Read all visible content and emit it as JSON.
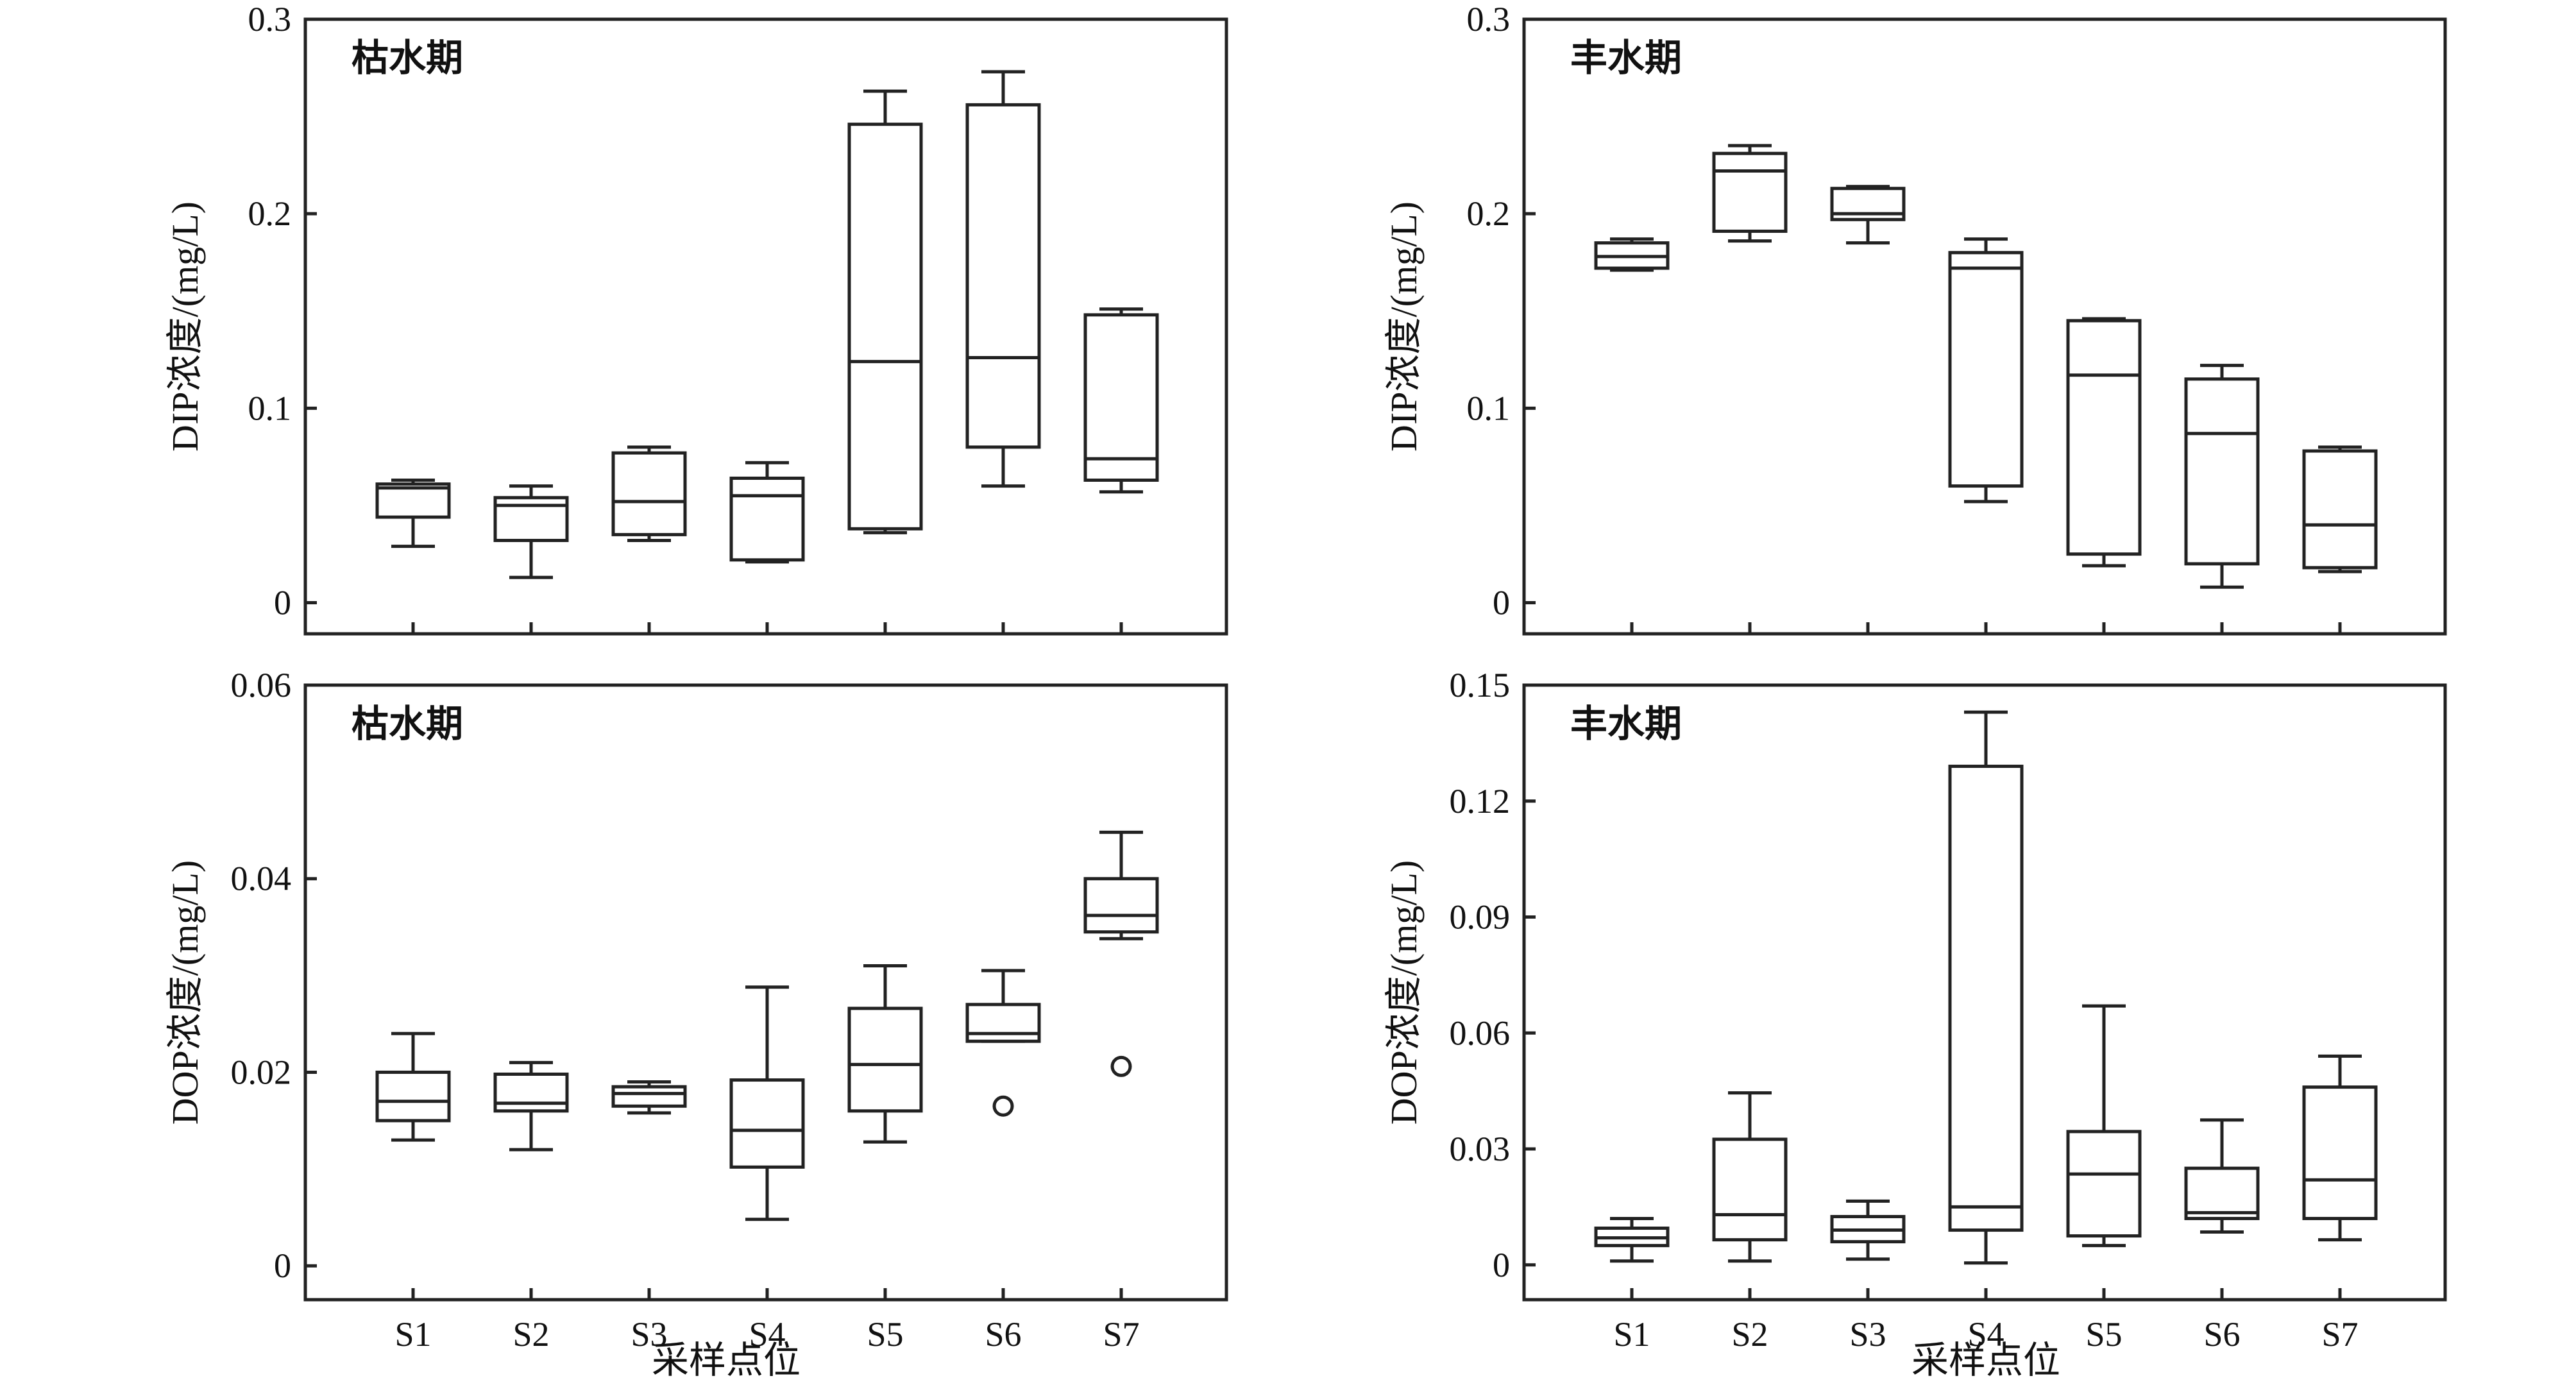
{
  "xlabel": "采样点位",
  "chart_data": [
    {
      "type": "box",
      "panel": "DIP-dry",
      "annotation": "枯水期",
      "ylabel": "DIP浓度/(mg/L)",
      "ylim": [
        -0.016,
        0.3
      ],
      "yticks": [
        0,
        0.1,
        0.2,
        0.3
      ],
      "ytick_labels": [
        "0",
        "0.1",
        "0.2",
        "0.3"
      ],
      "categories": [
        "S1",
        "S2",
        "S3",
        "S4",
        "S5",
        "S6",
        "S7"
      ],
      "boxes": [
        {
          "min": 0.029,
          "q1": 0.044,
          "median": 0.059,
          "q3": 0.061,
          "max": 0.063
        },
        {
          "min": 0.013,
          "q1": 0.032,
          "median": 0.05,
          "q3": 0.054,
          "max": 0.06
        },
        {
          "min": 0.032,
          "q1": 0.035,
          "median": 0.052,
          "q3": 0.077,
          "max": 0.08
        },
        {
          "min": 0.021,
          "q1": 0.022,
          "median": 0.055,
          "q3": 0.064,
          "max": 0.072
        },
        {
          "min": 0.036,
          "q1": 0.038,
          "median": 0.124,
          "q3": 0.246,
          "max": 0.263
        },
        {
          "min": 0.06,
          "q1": 0.08,
          "median": 0.126,
          "q3": 0.256,
          "max": 0.273
        },
        {
          "min": 0.057,
          "q1": 0.063,
          "median": 0.074,
          "q3": 0.148,
          "max": 0.151
        }
      ],
      "outliers": []
    },
    {
      "type": "box",
      "panel": "DIP-wet",
      "annotation": "丰水期",
      "ylabel": "DIP浓度/(mg/L)",
      "ylim": [
        -0.016,
        0.3
      ],
      "yticks": [
        0,
        0.1,
        0.2,
        0.3
      ],
      "ytick_labels": [
        "0",
        "0.1",
        "0.2",
        "0.3"
      ],
      "categories": [
        "S1",
        "S2",
        "S3",
        "S4",
        "S5",
        "S6",
        "S7"
      ],
      "boxes": [
        {
          "min": 0.171,
          "q1": 0.172,
          "median": 0.178,
          "q3": 0.185,
          "max": 0.187
        },
        {
          "min": 0.186,
          "q1": 0.191,
          "median": 0.222,
          "q3": 0.231,
          "max": 0.235
        },
        {
          "min": 0.185,
          "q1": 0.197,
          "median": 0.2,
          "q3": 0.213,
          "max": 0.214
        },
        {
          "min": 0.052,
          "q1": 0.06,
          "median": 0.172,
          "q3": 0.18,
          "max": 0.187
        },
        {
          "min": 0.019,
          "q1": 0.025,
          "median": 0.117,
          "q3": 0.145,
          "max": 0.146
        },
        {
          "min": 0.008,
          "q1": 0.02,
          "median": 0.087,
          "q3": 0.115,
          "max": 0.122
        },
        {
          "min": 0.016,
          "q1": 0.018,
          "median": 0.04,
          "q3": 0.078,
          "max": 0.08
        }
      ],
      "outliers": []
    },
    {
      "type": "box",
      "panel": "DOP-dry",
      "annotation": "枯水期",
      "ylabel": "DOP浓度/(mg/L)",
      "ylim": [
        -0.0035,
        0.06
      ],
      "yticks": [
        0,
        0.02,
        0.04,
        0.06
      ],
      "ytick_labels": [
        "0",
        "0.02",
        "0.04",
        "0.06"
      ],
      "categories": [
        "S1",
        "S2",
        "S3",
        "S4",
        "S5",
        "S6",
        "S7"
      ],
      "boxes": [
        {
          "min": 0.013,
          "q1": 0.015,
          "median": 0.017,
          "q3": 0.02,
          "max": 0.024
        },
        {
          "min": 0.012,
          "q1": 0.016,
          "median": 0.0168,
          "q3": 0.0198,
          "max": 0.021
        },
        {
          "min": 0.0158,
          "q1": 0.0165,
          "median": 0.0178,
          "q3": 0.0185,
          "max": 0.019
        },
        {
          "min": 0.0048,
          "q1": 0.0102,
          "median": 0.014,
          "q3": 0.0192,
          "max": 0.0288
        },
        {
          "min": 0.0128,
          "q1": 0.016,
          "median": 0.0208,
          "q3": 0.0266,
          "max": 0.031
        },
        {
          "min": 0.0232,
          "q1": 0.0232,
          "median": 0.024,
          "q3": 0.027,
          "max": 0.0305
        },
        {
          "min": 0.0338,
          "q1": 0.0345,
          "median": 0.0362,
          "q3": 0.04,
          "max": 0.0448
        }
      ],
      "outliers": [
        {
          "category": "S6",
          "value": 0.0165
        },
        {
          "category": "S7",
          "value": 0.0206
        }
      ]
    },
    {
      "type": "box",
      "panel": "DOP-wet",
      "annotation": "丰水期",
      "ylabel": "DOP浓度/(mg/L)",
      "ylim": [
        -0.009,
        0.15
      ],
      "yticks": [
        0,
        0.03,
        0.06,
        0.09,
        0.12,
        0.15
      ],
      "ytick_labels": [
        "0",
        "0.03",
        "0.06",
        "0.09",
        "0.12",
        "0.15"
      ],
      "categories": [
        "S1",
        "S2",
        "S3",
        "S4",
        "S5",
        "S6",
        "S7"
      ],
      "boxes": [
        {
          "min": 0.001,
          "q1": 0.005,
          "median": 0.007,
          "q3": 0.0095,
          "max": 0.012
        },
        {
          "min": 0.001,
          "q1": 0.0065,
          "median": 0.013,
          "q3": 0.0325,
          "max": 0.0445
        },
        {
          "min": 0.0015,
          "q1": 0.006,
          "median": 0.009,
          "q3": 0.0125,
          "max": 0.0165
        },
        {
          "min": 0.0005,
          "q1": 0.009,
          "median": 0.015,
          "q3": 0.129,
          "max": 0.143
        },
        {
          "min": 0.005,
          "q1": 0.0075,
          "median": 0.0235,
          "q3": 0.0345,
          "max": 0.067
        },
        {
          "min": 0.0085,
          "q1": 0.012,
          "median": 0.0135,
          "q3": 0.025,
          "max": 0.0375
        },
        {
          "min": 0.0065,
          "q1": 0.012,
          "median": 0.022,
          "q3": 0.046,
          "max": 0.054
        }
      ],
      "outliers": []
    }
  ]
}
